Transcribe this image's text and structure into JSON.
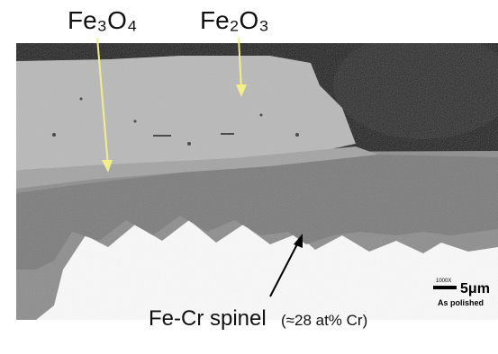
{
  "labels": {
    "magnetite": "Fe₃O₄",
    "hematite": "Fe₂O₃",
    "spinel": "Fe-Cr spinel",
    "spinel_note": "(≈28 at% Cr)"
  },
  "scale_bar": {
    "magnification": "1000X",
    "length": "5μm",
    "condition": "As polished"
  }
}
